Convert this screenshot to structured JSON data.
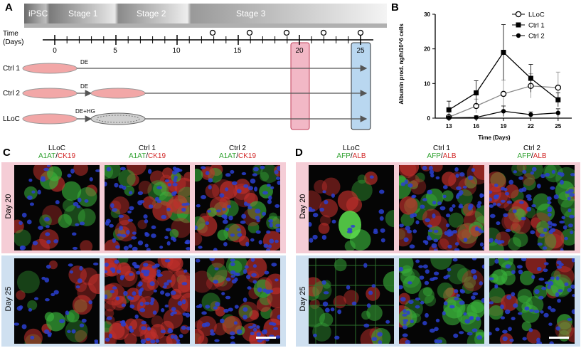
{
  "panel_letters": {
    "a": "A",
    "b": "B",
    "c": "C",
    "d": "D"
  },
  "timeline": {
    "stages": [
      "iPSC",
      "Stage 1",
      "Stage 2",
      "Stage 3"
    ],
    "time_label_line1": "Time",
    "time_label_line2": "(Days)",
    "ticks": [
      "0",
      "5",
      "10",
      "15",
      "20",
      "25"
    ],
    "highlight_days": [
      "20",
      "25"
    ],
    "rows": [
      {
        "name": "Ctrl 1",
        "step": "DE"
      },
      {
        "name": "Ctrl 2",
        "step": "DE"
      },
      {
        "name": "LLoC",
        "step": "DE+HG"
      }
    ],
    "colors": {
      "highlight20": "#f2b8c6",
      "highlight25": "#b9d7f0",
      "dish": "#f2a7a7"
    }
  },
  "panel_c": {
    "columns": [
      {
        "name": "LLoC",
        "m1": "A1AT",
        "sep": "/",
        "m2": "CK19"
      },
      {
        "name": "Ctrl 1",
        "m1": "A1AT",
        "sep": "/",
        "m2": "CK19"
      },
      {
        "name": "Ctrl 2",
        "m1": "A1AT",
        "sep": "/",
        "m2": "CK19"
      }
    ],
    "rows": [
      "Day 20",
      "Day 25"
    ]
  },
  "panel_d": {
    "columns": [
      {
        "name": "LLoC",
        "m1": "AFP",
        "sep": "/",
        "m2": "ALB"
      },
      {
        "name": "Ctrl 1",
        "m1": "AFP",
        "sep": "/",
        "m2": "ALB"
      },
      {
        "name": "Ctrl 2",
        "m1": "AFP",
        "sep": "/",
        "m2": "ALB"
      }
    ],
    "rows": [
      "Day 20",
      "Day 25"
    ]
  },
  "chart_data": {
    "type": "line",
    "x": [
      13,
      16,
      19,
      22,
      25
    ],
    "xlabel": "Time (Days)",
    "ylabel": "Albumin prod. ng/h/10^6 cells",
    "ylim": [
      0,
      30
    ],
    "yticks": [
      0,
      10,
      20,
      30
    ],
    "legend_position": "top-right",
    "series": [
      {
        "name": "LLoC",
        "marker": "open-circle",
        "values": [
          0.3,
          3.5,
          7.0,
          9.3,
          8.8
        ],
        "errors": [
          0.5,
          2.0,
          4.0,
          3.5,
          4.5
        ]
      },
      {
        "name": "Ctrl 1",
        "marker": "square",
        "values": [
          2.4,
          7.3,
          19.0,
          11.5,
          5.3
        ],
        "errors": [
          2.5,
          3.5,
          8.0,
          4.0,
          2.0
        ]
      },
      {
        "name": "Ctrl 2",
        "marker": "filled-circle",
        "values": [
          0.1,
          0.2,
          2.0,
          1.0,
          1.5
        ],
        "errors": [
          0.3,
          0.5,
          1.5,
          0.8,
          1.2
        ]
      }
    ]
  }
}
